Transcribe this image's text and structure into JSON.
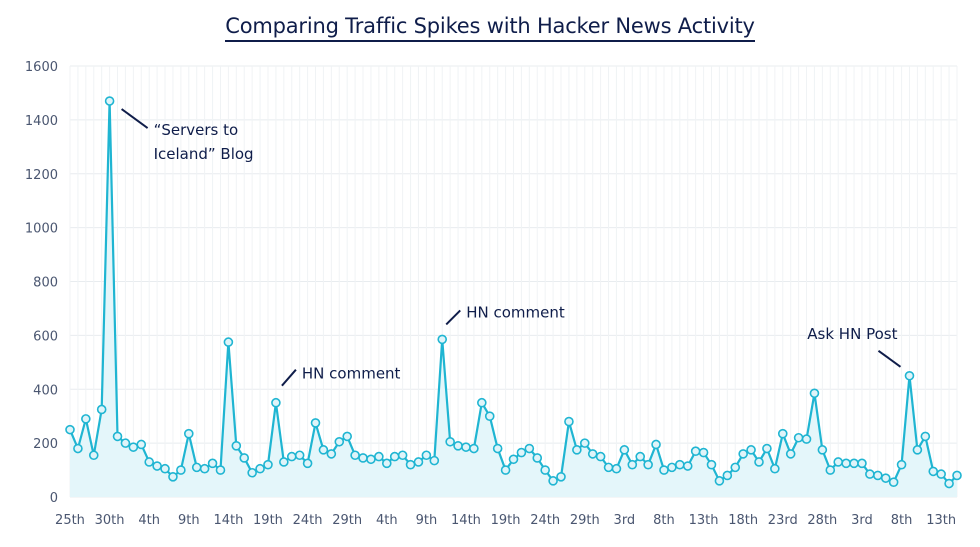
{
  "chart_data": {
    "type": "line",
    "title": "Comparing Traffic Spikes with Hacker News Activity",
    "xlabel": "",
    "ylabel": "",
    "ylim": [
      0,
      1600
    ],
    "yticks": [
      0,
      200,
      400,
      600,
      800,
      1000,
      1200,
      1400,
      1600
    ],
    "grid": true,
    "legend": "none",
    "colors": {
      "line": "#1fb5d2",
      "fill": "#e4f6fa",
      "marker_fill": "#dff4f9",
      "grid": "#e8ecef",
      "text": "#0f1d4a"
    },
    "x_tick_labels": [
      {
        "i": 0,
        "label": "25th"
      },
      {
        "i": 5,
        "label": "30th"
      },
      {
        "i": 10,
        "label": "4th"
      },
      {
        "i": 15,
        "label": "9th"
      },
      {
        "i": 20,
        "label": "14th"
      },
      {
        "i": 25,
        "label": "19th"
      },
      {
        "i": 30,
        "label": "24th"
      },
      {
        "i": 35,
        "label": "29th"
      },
      {
        "i": 40,
        "label": "4th"
      },
      {
        "i": 45,
        "label": "9th"
      },
      {
        "i": 50,
        "label": "14th"
      },
      {
        "i": 55,
        "label": "19th"
      },
      {
        "i": 60,
        "label": "24th"
      },
      {
        "i": 65,
        "label": "29th"
      },
      {
        "i": 70,
        "label": "3rd"
      },
      {
        "i": 75,
        "label": "8th"
      },
      {
        "i": 80,
        "label": "13th"
      },
      {
        "i": 85,
        "label": "18th"
      },
      {
        "i": 90,
        "label": "23rd"
      },
      {
        "i": 95,
        "label": "28th"
      },
      {
        "i": 100,
        "label": "3rd"
      },
      {
        "i": 105,
        "label": "8th"
      },
      {
        "i": 110,
        "label": "13th"
      }
    ],
    "values": [
      250,
      180,
      290,
      155,
      325,
      1470,
      225,
      200,
      185,
      195,
      130,
      115,
      105,
      75,
      100,
      235,
      110,
      105,
      125,
      100,
      575,
      190,
      145,
      90,
      105,
      120,
      350,
      130,
      150,
      155,
      125,
      275,
      175,
      160,
      205,
      225,
      155,
      145,
      140,
      150,
      125,
      150,
      155,
      120,
      130,
      155,
      135,
      585,
      205,
      190,
      185,
      180,
      350,
      300,
      180,
      100,
      140,
      165,
      180,
      145,
      100,
      60,
      75,
      280,
      175,
      200,
      160,
      150,
      110,
      105,
      175,
      120,
      150,
      120,
      195,
      100,
      110,
      120,
      115,
      170,
      165,
      120,
      60,
      80,
      110,
      160,
      175,
      130,
      180,
      105,
      235,
      160,
      220,
      215,
      385,
      175,
      100,
      130,
      125,
      125,
      125,
      85,
      80,
      70,
      55,
      120,
      450,
      175,
      225,
      95,
      85,
      50,
      80
    ],
    "annotations": [
      {
        "i": 5,
        "lines": [
          "“Servers to",
          "Iceland” Blog"
        ]
      },
      {
        "i": 26,
        "lines": [
          "HN comment"
        ]
      },
      {
        "i": 47,
        "lines": [
          "HN comment"
        ]
      },
      {
        "i": 106,
        "lines": [
          "Ask HN Post"
        ]
      }
    ]
  }
}
